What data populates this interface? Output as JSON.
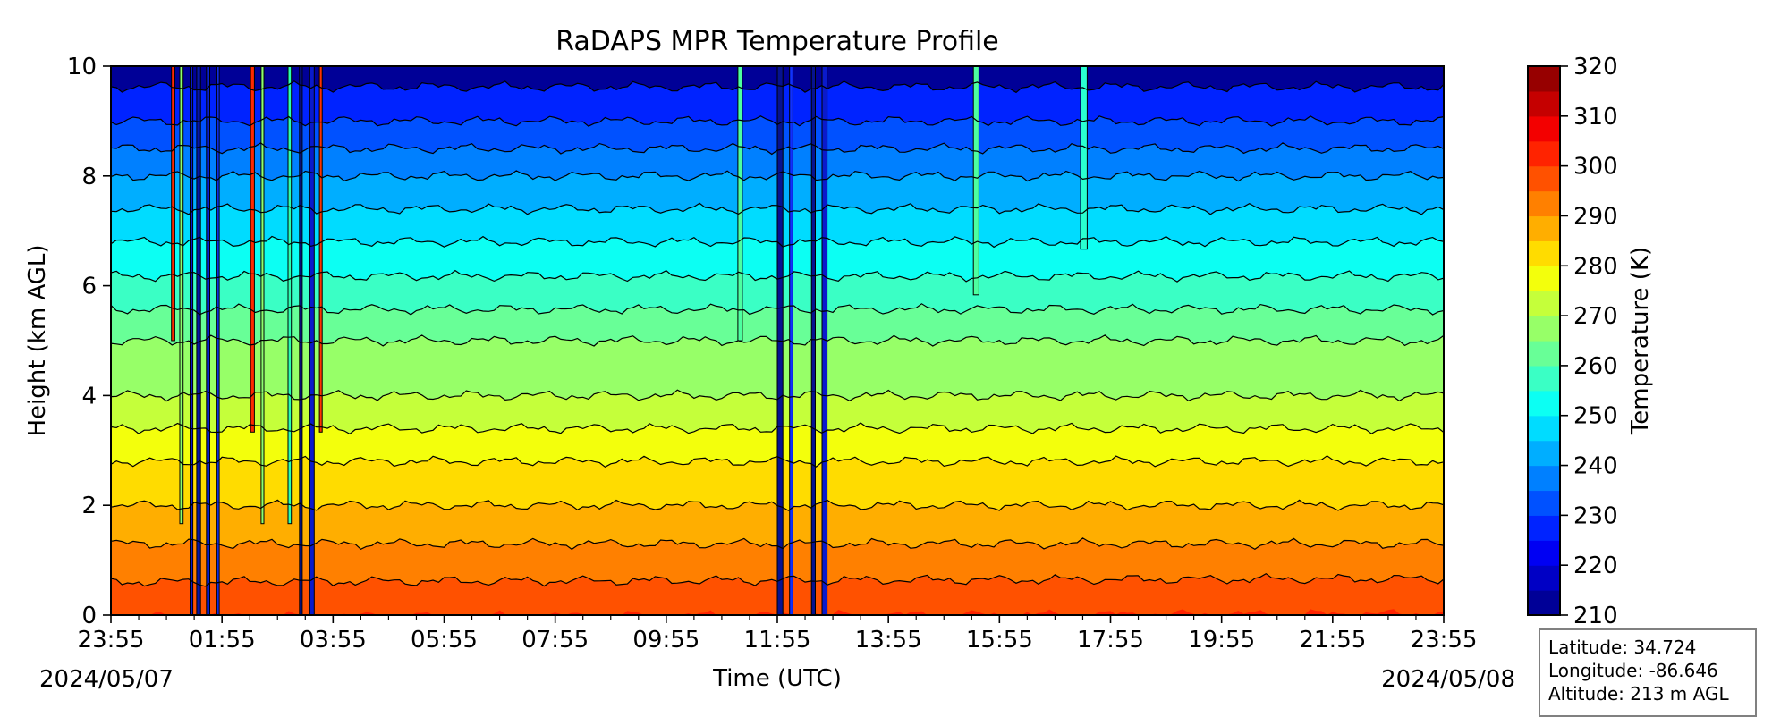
{
  "chart_data": {
    "type": "heatmap",
    "title": "RaDAPS MPR Temperature Profile",
    "xlabel": "Time (UTC)",
    "ylabel": "Height (km AGL)",
    "xlim": [
      0,
      24
    ],
    "ylim": [
      0,
      10
    ],
    "x_ticks": [
      "23:55",
      "01:55",
      "03:55",
      "05:55",
      "07:55",
      "09:55",
      "11:55",
      "13:55",
      "15:55",
      "17:55",
      "19:55",
      "21:55",
      "23:55"
    ],
    "y_ticks": [
      "0",
      "2",
      "4",
      "6",
      "8",
      "10"
    ],
    "date_start": "2024/05/07",
    "date_end": "2024/05/08",
    "colorbar": {
      "label": "Temperature (K)",
      "min": 210,
      "max": 320,
      "step": 5,
      "tick_labels": [
        "210",
        "220",
        "230",
        "240",
        "250",
        "260",
        "270",
        "280",
        "290",
        "300",
        "310",
        "320"
      ],
      "colormap": "jet"
    },
    "contour_interval_K": 5,
    "profile_clear_sky": [
      {
        "height_km": 0.0,
        "temperature_K": 300
      },
      {
        "height_km": 0.5,
        "temperature_K": 296
      },
      {
        "height_km": 1.3,
        "temperature_K": 290
      },
      {
        "height_km": 2.0,
        "temperature_K": 285
      },
      {
        "height_km": 2.8,
        "temperature_K": 280
      },
      {
        "height_km": 3.4,
        "temperature_K": 275
      },
      {
        "height_km": 4.0,
        "temperature_K": 270
      },
      {
        "height_km": 5.0,
        "temperature_K": 265
      },
      {
        "height_km": 5.8,
        "temperature_K": 258
      },
      {
        "height_km": 6.8,
        "temperature_K": 250
      },
      {
        "height_km": 8.0,
        "temperature_K": 240
      },
      {
        "height_km": 9.0,
        "temperature_K": 230
      },
      {
        "height_km": 10.0,
        "temperature_K": 222
      }
    ]
  },
  "info": {
    "latitude": "Latitude: 34.724",
    "longitude": "Longitude: -86.646",
    "altitude": "Altitude: 213 m AGL"
  }
}
